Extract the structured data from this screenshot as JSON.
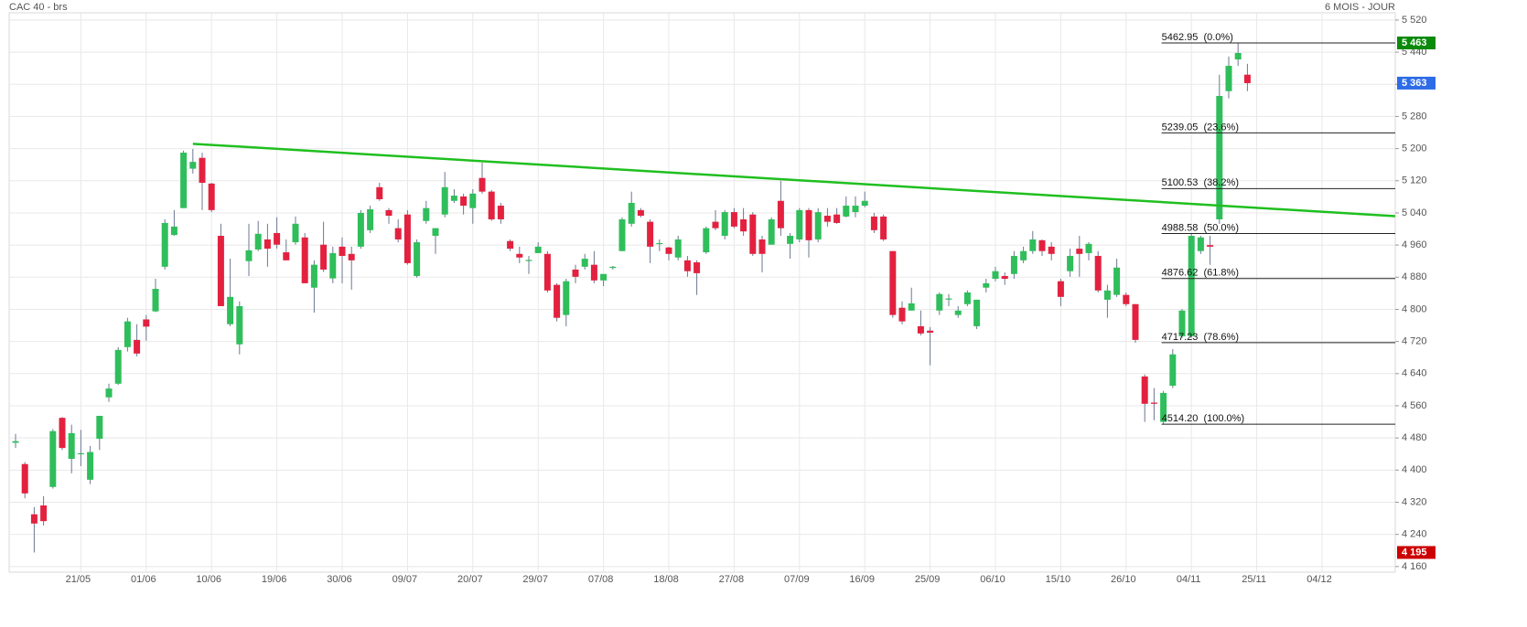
{
  "chart_data": {
    "type": "candlestick",
    "title": "CAC 40 - brs",
    "subtitle": "6 MOIS - JOUR",
    "categories": [
      null,
      null,
      null,
      null,
      null,
      null,
      null,
      "21/05",
      null,
      null,
      null,
      null,
      null,
      null,
      "01/06",
      null,
      null,
      null,
      null,
      null,
      null,
      "10/06",
      null,
      null,
      null,
      null,
      null,
      null,
      "19/06",
      null,
      null,
      null,
      null,
      null,
      null,
      "30/06",
      null,
      null,
      null,
      null,
      null,
      null,
      "09/07",
      null,
      null,
      null,
      null,
      null,
      null,
      "20/07",
      null,
      null,
      null,
      null,
      null,
      null,
      "29/07",
      null,
      null,
      null,
      null,
      null,
      null,
      "07/08",
      null,
      null,
      null,
      null,
      null,
      null,
      "18/08",
      null,
      null,
      null,
      null,
      null,
      null,
      "27/08",
      null,
      null,
      null,
      null,
      null,
      null,
      "07/09",
      null,
      null,
      null,
      null,
      null,
      null,
      "16/09",
      null,
      null,
      null,
      null,
      null,
      null,
      "25/09",
      null,
      null,
      null,
      null,
      null,
      null,
      "06/10",
      null,
      null,
      null,
      null,
      null,
      null,
      "15/10",
      null,
      null,
      null,
      null,
      null,
      null,
      "26/10",
      null,
      null,
      null,
      null,
      null,
      null,
      "04/11",
      null,
      null,
      null,
      null,
      null,
      null,
      "25/11",
      null,
      null,
      null,
      null,
      null,
      null,
      "04/12",
      null,
      null,
      null,
      null,
      null,
      null,
      null
    ],
    "open": [
      4468,
      4415,
      4290,
      4312,
      4358,
      4530,
      4428,
      4440,
      4376,
      4478,
      4581,
      4615,
      4706,
      4724,
      4775,
      4795,
      4906,
      4985,
      5052,
      5150,
      5177,
      5113,
      4983,
      4763,
      4713,
      4920,
      4949,
      4974,
      4990,
      4942,
      4967,
      4979,
      4854,
      4961,
      4877,
      4956,
      4938,
      4956,
      4997,
      5104,
      5047,
      5002,
      5036,
      4883,
      5020,
      4983,
      5036,
      5070,
      5081,
      5052,
      5127,
      5093,
      5058,
      4970,
      4938,
      4921,
      4940,
      4938,
      4861,
      4786,
      4899,
      4906,
      4911,
      4872,
      4903,
      4945,
      5013,
      5047,
      5018,
      4963,
      4954,
      4929,
      4922,
      4917,
      4942,
      5018,
      4983,
      5042,
      5024,
      5036,
      4974,
      4961,
      5070,
      4963,
      4974,
      5047,
      4974,
      5033,
      5036,
      5031,
      5042,
      5058,
      5031,
      5031,
      4945,
      4804,
      4797,
      4758,
      4747,
      4797,
      4825,
      4786,
      4813,
      4758,
      4854,
      4876,
      4883,
      4888,
      4922,
      4945,
      4972,
      4956,
      4870,
      4895,
      4951,
      4940,
      4933,
      4824,
      4836,
      4836,
      4813,
      4633,
      4568,
      4520,
      4610,
      4733,
      4733,
      4945,
      4960,
      5024,
      5343,
      5422,
      5384,
      null,
      null,
      null,
      null,
      null,
      null,
      null,
      null,
      null,
      null,
      null,
      null,
      null,
      null,
      null
    ],
    "high": [
      4490,
      4420,
      4308,
      4335,
      4502,
      4532,
      4513,
      4500,
      4460,
      4535,
      4615,
      4706,
      4779,
      4763,
      4786,
      4876,
      5024,
      5047,
      5195,
      5199,
      5190,
      5115,
      5013,
      4926,
      4820,
      5013,
      5020,
      5013,
      5029,
      4974,
      5031,
      4990,
      4922,
      5018,
      4956,
      4979,
      4956,
      5047,
      5058,
      5115,
      5052,
      5024,
      5047,
      4974,
      5070,
      5002,
      5142,
      5099,
      5088,
      5099,
      5165,
      5097,
      5065,
      4974,
      4956,
      4933,
      4967,
      4945,
      4865,
      4876,
      4911,
      4938,
      4945,
      4888,
      4908,
      5029,
      5093,
      5052,
      5024,
      4974,
      4956,
      4983,
      4933,
      4922,
      5006,
      5047,
      5047,
      5052,
      5052,
      5042,
      4983,
      5029,
      5120,
      4990,
      5052,
      5052,
      5052,
      5052,
      5052,
      5081,
      5081,
      5093,
      5040,
      5036,
      4945,
      4820,
      4854,
      4797,
      4756,
      4842,
      4838,
      4808,
      4847,
      4824,
      4876,
      4906,
      4892,
      4945,
      4956,
      4995,
      4974,
      4967,
      4876,
      4951,
      4983,
      4967,
      4945,
      4861,
      4926,
      4842,
      4813,
      4638,
      4604,
      4597,
      4701,
      4801,
      4990,
      4983,
      4983,
      5384,
      5429,
      5462.95,
      5411,
      null,
      null,
      null,
      null,
      null,
      null,
      null,
      null,
      null,
      null,
      null,
      null,
      null,
      null,
      null
    ],
    "low": [
      4455,
      4330,
      4195,
      4262,
      4354,
      4450,
      4392,
      4410,
      4365,
      4450,
      4570,
      4612,
      4695,
      4683,
      4722,
      4793,
      4899,
      4983,
      5052,
      5138,
      5047,
      5042,
      4808,
      4758,
      4688,
      4883,
      4945,
      4906,
      4951,
      4922,
      4961,
      4865,
      4792,
      4893,
      4865,
      4865,
      4849,
      4951,
      4990,
      5070,
      5013,
      4967,
      4911,
      4879,
      5013,
      4938,
      5029,
      5065,
      5036,
      5013,
      5088,
      5020,
      5013,
      4945,
      4915,
      4888,
      4940,
      4842,
      4770,
      4758,
      4865,
      4899,
      4865,
      4858,
      4899,
      4945,
      5006,
      5029,
      4915,
      4945,
      4922,
      4922,
      4881,
      4836,
      4938,
      4997,
      4974,
      5002,
      4983,
      4933,
      4892,
      4961,
      4983,
      4926,
      4967,
      4929,
      4967,
      5006,
      5013,
      5029,
      5029,
      5054,
      4990,
      4970,
      4779,
      4763,
      4797,
      4735,
      4661,
      4786,
      4808,
      4779,
      4808,
      4751,
      4842,
      4870,
      4861,
      4876,
      4915,
      4938,
      4933,
      4922,
      4808,
      4881,
      4881,
      4922,
      4842,
      4779,
      4831,
      4808,
      4717,
      4520,
      4524,
      4514.2,
      4604,
      4729,
      4729,
      4938,
      4911,
      5013,
      5325,
      5406,
      5343,
      null,
      null,
      null,
      null,
      null,
      null,
      null,
      null,
      null,
      null,
      null,
      null,
      null,
      null,
      null
    ],
    "close": [
      4472,
      4342,
      4267,
      4273,
      4497,
      4455,
      4492,
      4442,
      4445,
      4535,
      4603,
      4699,
      4770,
      4690,
      4757,
      4851,
      5015,
      5006,
      5190,
      5167,
      5115,
      5047,
      4808,
      4831,
      4808,
      4947,
      4988,
      4951,
      4961,
      4922,
      5013,
      4865,
      4911,
      4899,
      4940,
      4933,
      4922,
      5040,
      5049,
      5074,
      5033,
      4974,
      4915,
      4967,
      5052,
      5002,
      5104,
      5083,
      5058,
      5088,
      5093,
      5024,
      5024,
      4951,
      4929,
      4923,
      4956,
      4847,
      4779,
      4870,
      4881,
      4926,
      4872,
      4888,
      4906,
      5024,
      5065,
      5033,
      4956,
      4965,
      4938,
      4974,
      4895,
      4890,
      5002,
      5002,
      5042,
      5006,
      4994,
      4938,
      4938,
      5024,
      5002,
      4983,
      5047,
      4972,
      5042,
      5018,
      5015,
      5058,
      5058,
      5070,
      4997,
      4974,
      4786,
      4770,
      4815,
      4740,
      4742,
      4838,
      4827,
      4797,
      4842,
      4824,
      4865,
      4895,
      4876,
      4933,
      4945,
      4974,
      4945,
      4938,
      4831,
      4933,
      4938,
      4963,
      4847,
      4847,
      4904,
      4813,
      4724,
      4565,
      4565,
      4592,
      4688,
      4797,
      4983,
      4979,
      4956,
      5331,
      5406,
      5438,
      5363,
      null,
      null,
      null,
      null,
      null,
      null,
      null,
      null,
      null,
      null,
      null,
      null,
      null,
      null,
      null
    ],
    "up_color": "#2fbe5b",
    "down_color": "#e3213f",
    "wick_color": "#6b7893",
    "ylim": [
      4146,
      5538
    ],
    "yticks": [
      {
        "value": 4160,
        "label": "4 160"
      },
      {
        "value": 4240,
        "label": "4 240"
      },
      {
        "value": 4320,
        "label": "4 320"
      },
      {
        "value": 4400,
        "label": "4 400"
      },
      {
        "value": 4480,
        "label": "4 480"
      },
      {
        "value": 4560,
        "label": "4 560"
      },
      {
        "value": 4640,
        "label": "4 640"
      },
      {
        "value": 4720,
        "label": "4 720"
      },
      {
        "value": 4800,
        "label": "4 800"
      },
      {
        "value": 4880,
        "label": "4 880"
      },
      {
        "value": 4960,
        "label": "4 960"
      },
      {
        "value": 5040,
        "label": "5 040"
      },
      {
        "value": 5120,
        "label": "5 120"
      },
      {
        "value": 5200,
        "label": "5 200"
      },
      {
        "value": 5280,
        "label": "5 280"
      },
      {
        "value": 5360,
        "label": "5 360"
      },
      {
        "value": 5440,
        "label": "5 440"
      },
      {
        "value": 5520,
        "label": "5 520"
      }
    ],
    "grid": true,
    "trendline": {
      "x": [
        19,
        147.84
      ],
      "values": [
        5212,
        5032
      ],
      "color": "#1fbf1f"
    },
    "fib_levels": [
      {
        "value": 5462.95,
        "label": "5462.95  (0.0%)"
      },
      {
        "value": 5239.05,
        "label": "5239.05  (23.6%)"
      },
      {
        "value": 5100.53,
        "label": "5100.53  (38.2%)"
      },
      {
        "value": 4988.58,
        "label": "4988.58  (50.0%)"
      },
      {
        "value": 4876.62,
        "label": "4876.62  (61.8%)"
      },
      {
        "value": 4717.23,
        "label": "4717.23  (78.6%)"
      },
      {
        "value": 4514.2,
        "label": "4514.20  (100.0%)"
      }
    ],
    "fib_start": 123,
    "price_badges": [
      {
        "value": 5463,
        "label": "5 463",
        "color": "#0a8a0a"
      },
      {
        "value": 5363,
        "label": "5 363",
        "color": "#2e6be6"
      },
      {
        "value": 4195,
        "label": "4 195",
        "color": "#cc0000"
      }
    ]
  }
}
